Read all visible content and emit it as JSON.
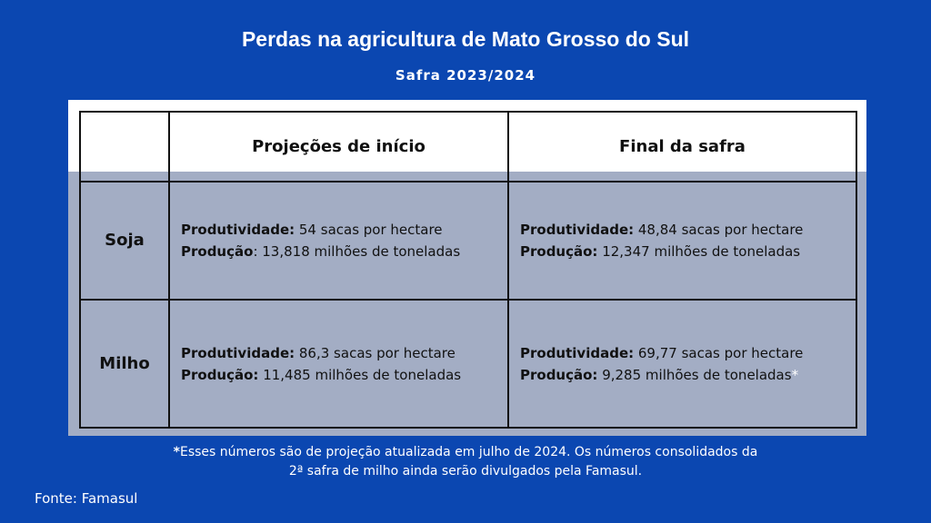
{
  "header": {
    "title": "Perdas na agricultura de Mato Grosso do Sul",
    "subtitle": "Safra 2023/2024"
  },
  "table": {
    "columns": [
      "Projeções de início",
      "Final da safra"
    ],
    "rows": [
      {
        "label": "Soja",
        "cells": [
          [
            {
              "bold": "Produtividade:",
              "text": " 54 sacas por hectare"
            },
            {
              "bold": "Produção",
              "text": ": 13,818 milhões de toneladas"
            }
          ],
          [
            {
              "bold": "Produtividade:",
              "text": " 48,84 sacas por hectare"
            },
            {
              "bold": "Produção:",
              "text": " 12,347 milhões de toneladas"
            }
          ]
        ]
      },
      {
        "label": "Milho",
        "cells": [
          [
            {
              "bold": "Produtividade:",
              "text": " 86,3 sacas por hectare"
            },
            {
              "bold": "Produção:",
              "text": " 11,485 milhões de toneladas"
            }
          ],
          [
            {
              "bold": "Produtividade:",
              "text": " 69,77 sacas por hectare"
            },
            {
              "bold": "Produção:",
              "text": " 9,285 milhões de toneladas",
              "note": "*"
            }
          ]
        ]
      }
    ]
  },
  "footnote": {
    "mark": "*",
    "lines": [
      "Esses números são de projeção atualizada em julho de 2024. Os números consolidados da",
      "2ª safra de milho ainda serão divulgados pela Famasul."
    ]
  },
  "source": "Fonte: Famasul"
}
